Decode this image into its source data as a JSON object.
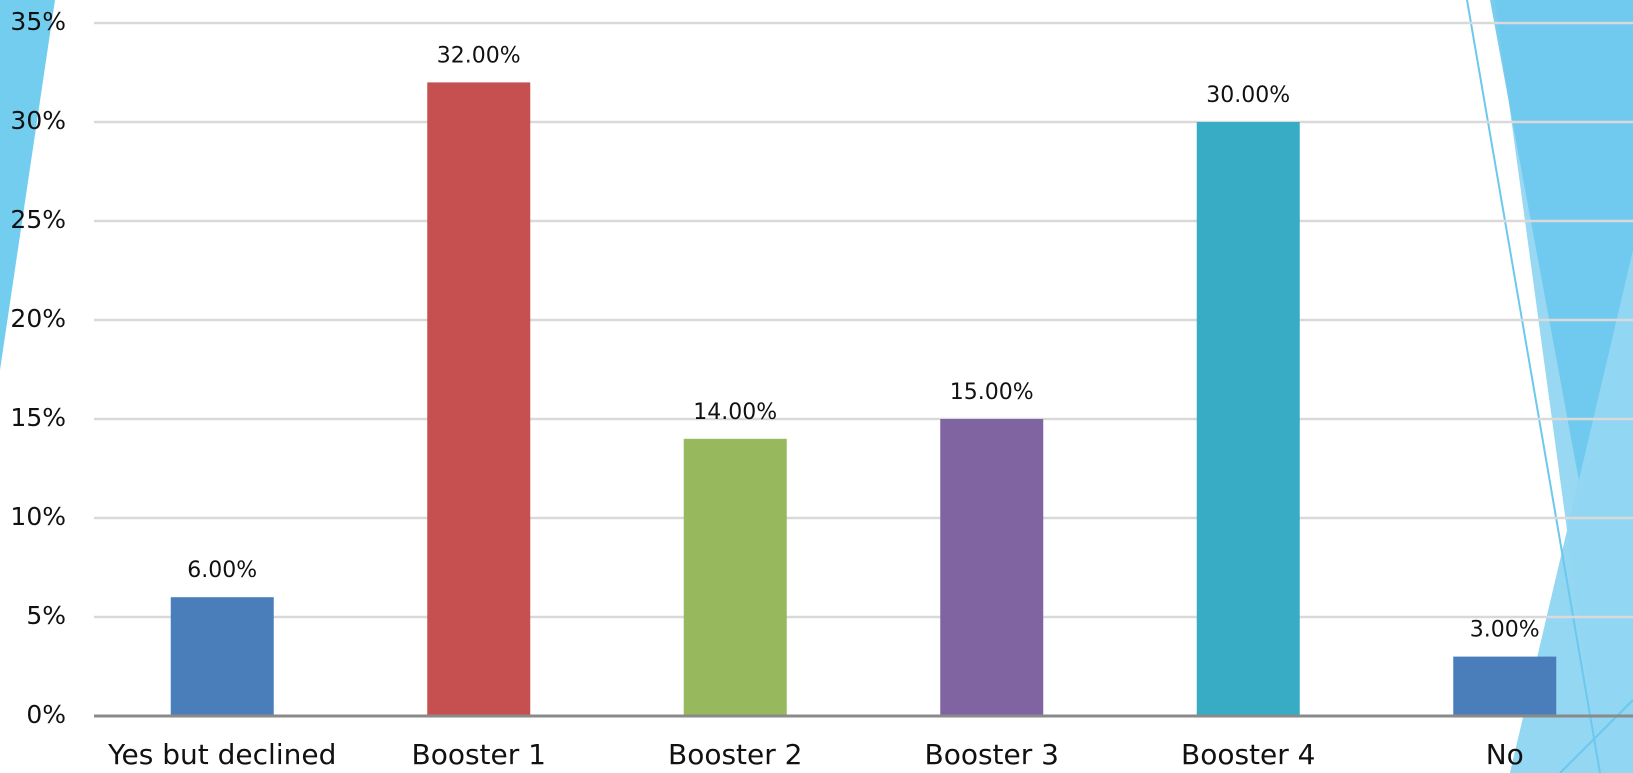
{
  "chart_data": {
    "type": "bar",
    "categories": [
      "Yes but declined",
      "Booster 1",
      "Booster 2",
      "Booster 3",
      "Booster 4",
      "No"
    ],
    "values": [
      6,
      32,
      14,
      15,
      30,
      3
    ],
    "value_labels": [
      "6.00%",
      "32.00%",
      "14.00%",
      "15.00%",
      "30.00%",
      "3.00%"
    ],
    "colors": [
      "#4a7ebb",
      "#c5504f",
      "#97b85d",
      "#8064a2",
      "#38abc5",
      "#4a7ebb"
    ],
    "ylim": [
      0,
      35
    ],
    "yticks": [
      {
        "value": 0,
        "label": "0%"
      },
      {
        "value": 5,
        "label": "5%"
      },
      {
        "value": 10,
        "label": "10%"
      },
      {
        "value": 15,
        "label": "15%"
      },
      {
        "value": 20,
        "label": "20%"
      },
      {
        "value": 25,
        "label": "25%"
      },
      {
        "value": 30,
        "label": "30%"
      },
      {
        "value": 35,
        "label": "35%"
      }
    ],
    "grid": true
  }
}
